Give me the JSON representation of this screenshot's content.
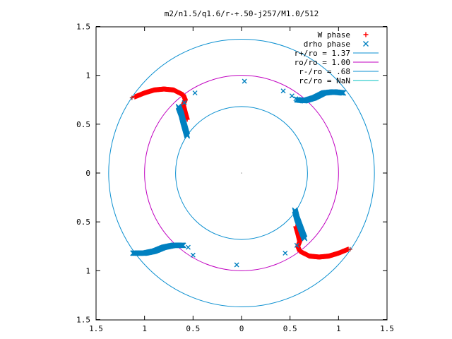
{
  "chart_data": {
    "type": "scatter",
    "title": "m2/n1.5/q1.6/r-+.50-j257/M1.0/512",
    "xlabel": "",
    "ylabel": "",
    "xlim": [
      -1.5,
      1.5
    ],
    "ylim": [
      -1.5,
      1.5
    ],
    "x_ticks": [
      {
        "value": -1.5,
        "label": "1.5"
      },
      {
        "value": -1.0,
        "label": "1"
      },
      {
        "value": -0.5,
        "label": "0.5"
      },
      {
        "value": 0.0,
        "label": "0"
      },
      {
        "value": 0.5,
        "label": "0.5"
      },
      {
        "value": 1.0,
        "label": "1"
      },
      {
        "value": 1.5,
        "label": "1.5"
      }
    ],
    "y_ticks": [
      {
        "value": 1.5,
        "label": "1.5"
      },
      {
        "value": 1.0,
        "label": "1"
      },
      {
        "value": 0.5,
        "label": "0.5"
      },
      {
        "value": 0.0,
        "label": "0"
      },
      {
        "value": -0.5,
        "label": "0.5"
      },
      {
        "value": -1.0,
        "label": "1"
      },
      {
        "value": -1.5,
        "label": "1.5"
      }
    ],
    "grid": false,
    "legend_position": "top-right",
    "series": [
      {
        "name": "W phase",
        "marker": "plus",
        "color": "#ff0000"
      },
      {
        "name": "drho phase",
        "marker": "cross",
        "color": "#0080c0"
      },
      {
        "name": "r+/ro = 1.37",
        "shape": "circle",
        "radius": 1.37,
        "color": "#0a8fd0"
      },
      {
        "name": "ro/ro = 1.00",
        "shape": "circle",
        "radius": 1.0,
        "color": "#c000c0"
      },
      {
        "name": "r-/ro = .68",
        "shape": "circle",
        "radius": 0.68,
        "color": "#0a8fd0"
      },
      {
        "name": "rc/ro = NaN",
        "shape": "none",
        "color": "#00c0c0"
      }
    ],
    "w_phase_arcs": [
      [
        [
          -1.1,
          0.78
        ],
        [
          -1.0,
          0.82
        ],
        [
          -0.9,
          0.85
        ],
        [
          -0.8,
          0.86
        ],
        [
          -0.7,
          0.85
        ],
        [
          -0.6,
          0.8
        ],
        [
          -0.58,
          0.75
        ],
        [
          -0.6,
          0.7
        ],
        [
          -0.58,
          0.62
        ],
        [
          -0.56,
          0.55
        ]
      ],
      [
        [
          1.1,
          -0.78
        ],
        [
          1.0,
          -0.82
        ],
        [
          0.9,
          -0.85
        ],
        [
          0.8,
          -0.86
        ],
        [
          0.7,
          -0.85
        ],
        [
          0.6,
          -0.8
        ],
        [
          0.58,
          -0.75
        ],
        [
          0.6,
          -0.7
        ],
        [
          0.58,
          -0.62
        ],
        [
          0.56,
          -0.55
        ]
      ]
    ],
    "drho_phase_arcs": [
      [
        [
          -0.65,
          0.68
        ],
        [
          -0.62,
          0.6
        ],
        [
          -0.6,
          0.52
        ],
        [
          -0.58,
          0.45
        ],
        [
          -0.56,
          0.38
        ]
      ],
      [
        [
          0.57,
          0.75
        ],
        [
          0.65,
          0.74
        ],
        [
          0.75,
          0.77
        ],
        [
          0.85,
          0.82
        ],
        [
          0.95,
          0.83
        ],
        [
          1.05,
          0.82
        ]
      ],
      [
        [
          -1.12,
          -0.82
        ],
        [
          -1.0,
          -0.82
        ],
        [
          -0.9,
          -0.8
        ],
        [
          -0.8,
          -0.76
        ],
        [
          -0.7,
          -0.74
        ],
        [
          -0.6,
          -0.74
        ]
      ],
      [
        [
          0.55,
          -0.38
        ],
        [
          0.57,
          -0.46
        ],
        [
          0.6,
          -0.54
        ],
        [
          0.63,
          -0.62
        ],
        [
          0.65,
          -0.67
        ]
      ]
    ],
    "drho_isolated": [
      [
        -0.48,
        0.82
      ],
      [
        -0.59,
        0.72
      ],
      [
        0.03,
        0.94
      ],
      [
        0.43,
        0.84
      ],
      [
        0.52,
        0.79
      ],
      [
        0.56,
        0.76
      ],
      [
        -0.5,
        -0.84
      ],
      [
        -0.05,
        -0.94
      ],
      [
        0.45,
        -0.82
      ],
      [
        0.57,
        -0.74
      ],
      [
        -0.55,
        -0.76
      ],
      [
        -0.63,
        -0.74
      ]
    ],
    "w_isolated": [
      [
        -1.13,
        0.77
      ],
      [
        1.12,
        -0.78
      ]
    ]
  }
}
